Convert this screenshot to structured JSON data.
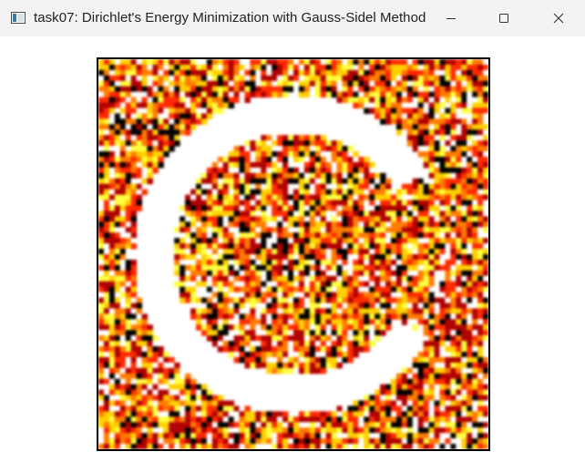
{
  "window": {
    "title": "task07: Dirichlet's Energy Minimization with Gauss-Sidel Method",
    "icon": "app-window-icon",
    "controls": {
      "minimize": "minimize-icon",
      "maximize": "maximize-icon",
      "close": "close-icon"
    }
  },
  "viewport": {
    "background": "#ffffff",
    "border_color": "#000000",
    "colormap": [
      "#000000",
      "#b00000",
      "#ff2a00",
      "#ff7a00",
      "#ffd000",
      "#ffff40",
      "#ffffff"
    ]
  }
}
